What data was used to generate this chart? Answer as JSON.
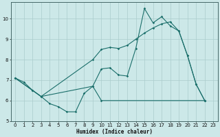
{
  "xlabel": "Humidex (Indice chaleur)",
  "bg_color": "#cce8e8",
  "grid_color": "#aacccc",
  "line_color": "#1a6e6a",
  "xlim": [
    -0.5,
    23.5
  ],
  "ylim": [
    5.0,
    10.8
  ],
  "yticks": [
    5,
    6,
    7,
    8,
    9,
    10
  ],
  "xticks": [
    0,
    1,
    2,
    3,
    4,
    5,
    6,
    7,
    8,
    9,
    10,
    11,
    12,
    13,
    14,
    15,
    16,
    17,
    18,
    19,
    20,
    21,
    22,
    23
  ],
  "line1_x": [
    0,
    1,
    2,
    3,
    4,
    5,
    6,
    7,
    8,
    9,
    10,
    11,
    12,
    13,
    14,
    15,
    16,
    17,
    18,
    19,
    20,
    21,
    22
  ],
  "line1_y": [
    7.1,
    6.9,
    6.5,
    6.2,
    5.85,
    5.7,
    5.45,
    5.45,
    6.35,
    6.7,
    7.55,
    7.6,
    7.25,
    7.2,
    8.55,
    10.5,
    9.8,
    10.1,
    9.65,
    9.4,
    8.2,
    6.8,
    6.0
  ],
  "line2_x": [
    0,
    3,
    9,
    10,
    11,
    12,
    13,
    14,
    15,
    16,
    17,
    18,
    19,
    20,
    21,
    22
  ],
  "line2_y": [
    7.1,
    6.2,
    8.0,
    8.5,
    8.6,
    8.55,
    8.7,
    9.0,
    9.3,
    9.55,
    9.75,
    9.85,
    9.4,
    8.2,
    6.8,
    6.0
  ],
  "line3_x": [
    0,
    2,
    3,
    9,
    10,
    22
  ],
  "line3_y": [
    7.1,
    6.5,
    6.2,
    6.7,
    6.0,
    6.0
  ]
}
